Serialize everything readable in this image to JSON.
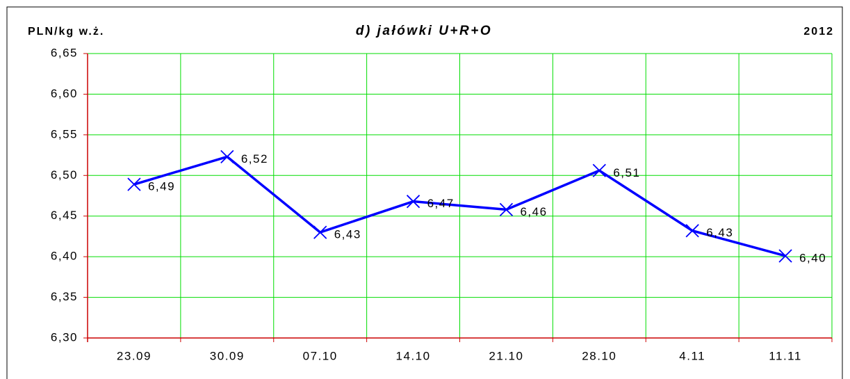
{
  "chart_data": {
    "type": "line",
    "title": "d) jałówki U+R+O",
    "y_label": "PLN/kg w.ż.",
    "year": "2012",
    "categories": [
      "23.09",
      "30.09",
      "07.10",
      "14.10",
      "21.10",
      "28.10",
      "4.11",
      "11.11"
    ],
    "series": [
      {
        "name": "jałówki U+R+O",
        "color": "#0000ff",
        "values": [
          6.489,
          6.523,
          6.43,
          6.468,
          6.458,
          6.506,
          6.432,
          6.401
        ],
        "value_labels": [
          "6,49",
          "6,52",
          "6,43",
          "6,47",
          "6,46",
          "6,51",
          "6,43",
          "6,40"
        ]
      }
    ],
    "ylim": [
      6.3,
      6.65
    ],
    "yticks": [
      {
        "value": 6.3,
        "label": "6,30"
      },
      {
        "value": 6.35,
        "label": "6,35"
      },
      {
        "value": 6.4,
        "label": "6,40"
      },
      {
        "value": 6.45,
        "label": "6,45"
      },
      {
        "value": 6.5,
        "label": "6,50"
      },
      {
        "value": 6.55,
        "label": "6,55"
      },
      {
        "value": 6.6,
        "label": "6,60"
      },
      {
        "value": 6.65,
        "label": "6,65"
      }
    ],
    "grid": true,
    "grid_color": "#00dd00",
    "axis_color": "#cc0000"
  }
}
